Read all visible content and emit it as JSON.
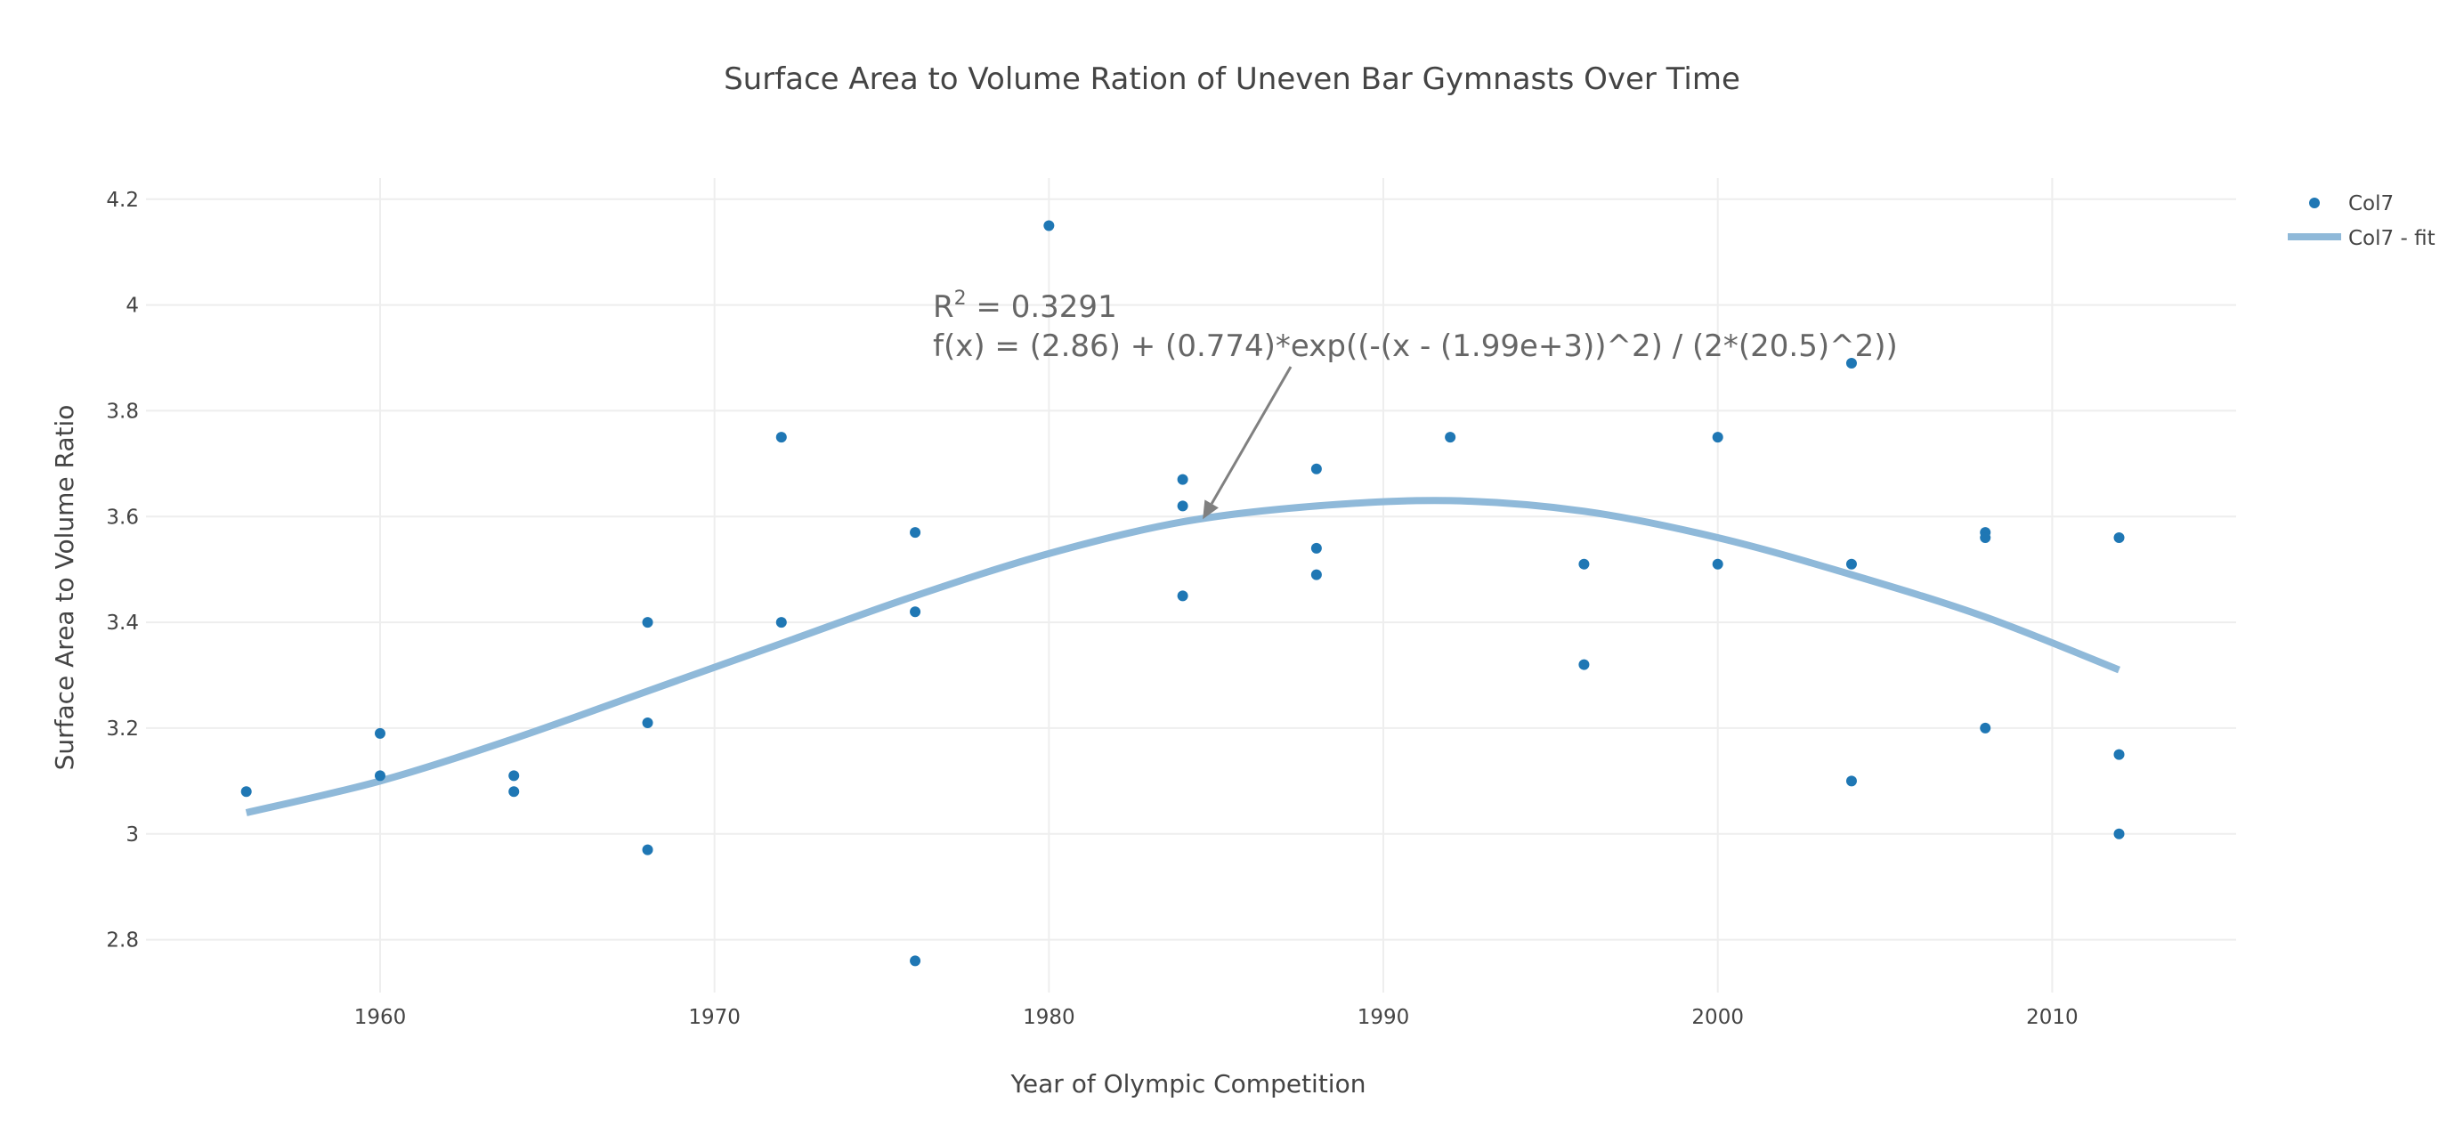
{
  "chart_data": {
    "type": "scatter",
    "title": "Surface Area to Volume Ration of Uneven Bar Gymnasts Over Time",
    "xlabel": "Year of Olympic Competition",
    "ylabel": "Surface Area to Volume Ratio",
    "xlim": [
      1953,
      2015.5
    ],
    "ylim": [
      2.7,
      4.24
    ],
    "x_ticks": [
      1960,
      1970,
      1980,
      1990,
      2000,
      2010
    ],
    "y_ticks": [
      2.8,
      3,
      3.2,
      3.4,
      3.6,
      3.8,
      4,
      4.2
    ],
    "y_tick_labels": [
      "2.8",
      "3",
      "3.2",
      "3.4",
      "3.6",
      "3.8",
      "4",
      "4.2"
    ],
    "grid": true,
    "legend_position": "top-right",
    "colors": {
      "points": "#1f77b4",
      "fit": "#8fb9d9",
      "annotation": "#666666",
      "arrow": "#808080"
    },
    "series": [
      {
        "name": "Col7",
        "mode": "markers",
        "x": [
          1956,
          1960,
          1960,
          1964,
          1964,
          1968,
          1968,
          1968,
          1972,
          1972,
          1976,
          1976,
          1976,
          1980,
          1984,
          1984,
          1984,
          1988,
          1988,
          1988,
          1992,
          1996,
          1996,
          2000,
          2000,
          2004,
          2004,
          2004,
          2008,
          2008,
          2008,
          2012,
          2012,
          2012
        ],
        "y": [
          3.08,
          3.19,
          3.11,
          3.11,
          3.08,
          3.4,
          3.21,
          2.97,
          3.75,
          3.4,
          3.57,
          3.42,
          2.76,
          4.15,
          3.67,
          3.62,
          3.45,
          3.69,
          3.54,
          3.49,
          3.75,
          3.51,
          3.32,
          3.75,
          3.51,
          3.89,
          3.51,
          3.1,
          3.57,
          3.56,
          3.2,
          3.56,
          3.15,
          3.0
        ]
      },
      {
        "name": "Col7 - fit",
        "mode": "line",
        "x": [
          1956,
          1960,
          1964,
          1968,
          1972,
          1976,
          1980,
          1984,
          1988,
          1992,
          1996,
          2000,
          2004,
          2008,
          2012
        ],
        "y": [
          3.04,
          3.1,
          3.18,
          3.27,
          3.36,
          3.45,
          3.53,
          3.59,
          3.62,
          3.63,
          3.61,
          3.56,
          3.49,
          3.41,
          3.31
        ]
      }
    ],
    "annotation": {
      "r2_label": "R",
      "r2_sup": "2",
      "r2_value": " = 0.3291",
      "formula": "f(x) = (2.86) + (0.774)*exp((-(x - (1.99e+3))^2) / (2*(20.5)^2))",
      "arrow_target": {
        "x": 1984.6,
        "y": 3.595
      }
    }
  }
}
